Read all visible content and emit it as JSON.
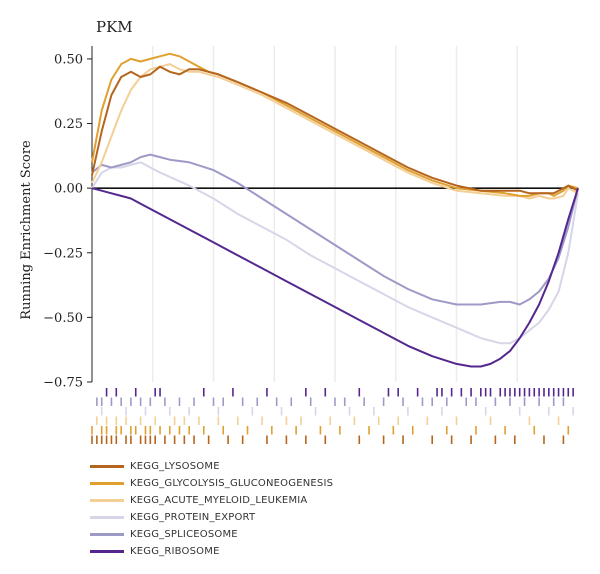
{
  "chart_data": {
    "type": "line",
    "title": "PKM",
    "xlabel": "",
    "ylabel": "Running Enrichment Score",
    "ylim": [
      -0.75,
      0.55
    ],
    "yticks": [
      0.5,
      0.25,
      0.0,
      -0.25,
      -0.5,
      -0.75
    ],
    "ytick_labels": [
      "0.50",
      "0.25",
      "0.00",
      "−0.25",
      "−0.50",
      "−0.75"
    ],
    "x_range": [
      0,
      1
    ],
    "grid": "vertical",
    "legend_position": "bottom",
    "series": [
      {
        "name": "KEGG_LYSOSOME",
        "color": "#b5651d",
        "x": [
          0,
          0.02,
          0.04,
          0.06,
          0.08,
          0.1,
          0.12,
          0.14,
          0.16,
          0.18,
          0.2,
          0.22,
          0.24,
          0.26,
          0.3,
          0.35,
          0.4,
          0.45,
          0.5,
          0.55,
          0.6,
          0.65,
          0.7,
          0.75,
          0.8,
          0.85,
          0.88,
          0.9,
          0.92,
          0.94,
          0.95,
          0.97,
          0.98,
          1.0
        ],
        "y": [
          0.05,
          0.22,
          0.36,
          0.43,
          0.45,
          0.43,
          0.44,
          0.47,
          0.45,
          0.44,
          0.46,
          0.46,
          0.45,
          0.44,
          0.41,
          0.37,
          0.33,
          0.28,
          0.23,
          0.18,
          0.13,
          0.08,
          0.04,
          0.01,
          -0.01,
          -0.01,
          -0.01,
          -0.02,
          -0.02,
          -0.02,
          -0.02,
          0.0,
          0.01,
          -0.01
        ]
      },
      {
        "name": "KEGG_GLYCOLYSIS_GLUCONEOGENESIS",
        "color": "#e0a030",
        "x": [
          0,
          0.02,
          0.04,
          0.06,
          0.08,
          0.1,
          0.12,
          0.14,
          0.16,
          0.18,
          0.2,
          0.22,
          0.24,
          0.26,
          0.3,
          0.35,
          0.4,
          0.45,
          0.5,
          0.55,
          0.6,
          0.65,
          0.7,
          0.75,
          0.8,
          0.85,
          0.88,
          0.9,
          0.92,
          0.94,
          0.95,
          0.97,
          0.98,
          1.0
        ],
        "y": [
          0.1,
          0.3,
          0.42,
          0.48,
          0.5,
          0.49,
          0.5,
          0.51,
          0.52,
          0.51,
          0.49,
          0.47,
          0.45,
          0.44,
          0.41,
          0.37,
          0.32,
          0.27,
          0.22,
          0.17,
          0.12,
          0.07,
          0.03,
          0.0,
          -0.01,
          -0.02,
          -0.03,
          -0.03,
          -0.02,
          -0.02,
          -0.03,
          -0.01,
          0.01,
          0.0
        ]
      },
      {
        "name": "KEGG_ACUTE_MYELOID_LEUKEMIA",
        "color": "#f3cf96",
        "x": [
          0,
          0.02,
          0.04,
          0.06,
          0.08,
          0.1,
          0.12,
          0.14,
          0.16,
          0.18,
          0.2,
          0.22,
          0.24,
          0.26,
          0.3,
          0.35,
          0.4,
          0.45,
          0.5,
          0.55,
          0.6,
          0.65,
          0.7,
          0.75,
          0.8,
          0.85,
          0.88,
          0.9,
          0.92,
          0.94,
          0.95,
          0.97,
          0.98,
          1.0
        ],
        "y": [
          0.02,
          0.1,
          0.2,
          0.3,
          0.38,
          0.43,
          0.46,
          0.47,
          0.48,
          0.46,
          0.45,
          0.45,
          0.44,
          0.43,
          0.4,
          0.36,
          0.31,
          0.26,
          0.21,
          0.16,
          0.11,
          0.06,
          0.02,
          -0.01,
          -0.02,
          -0.03,
          -0.03,
          -0.04,
          -0.03,
          -0.04,
          -0.04,
          -0.03,
          0.0,
          -0.02
        ]
      },
      {
        "name": "KEGG_PROTEIN_EXPORT",
        "color": "#d6d6e8",
        "x": [
          0,
          0.02,
          0.04,
          0.06,
          0.08,
          0.1,
          0.14,
          0.2,
          0.25,
          0.3,
          0.35,
          0.4,
          0.45,
          0.5,
          0.55,
          0.6,
          0.65,
          0.7,
          0.75,
          0.8,
          0.84,
          0.86,
          0.88,
          0.9,
          0.92,
          0.94,
          0.96,
          0.98,
          1.0
        ],
        "y": [
          0.0,
          0.06,
          0.08,
          0.08,
          0.09,
          0.1,
          0.06,
          0.01,
          -0.04,
          -0.1,
          -0.15,
          -0.2,
          -0.26,
          -0.31,
          -0.36,
          -0.41,
          -0.46,
          -0.5,
          -0.54,
          -0.58,
          -0.6,
          -0.6,
          -0.58,
          -0.55,
          -0.52,
          -0.47,
          -0.4,
          -0.25,
          -0.02
        ]
      },
      {
        "name": "KEGG_SPLICEOSOME",
        "color": "#9e9ac8",
        "x": [
          0,
          0.02,
          0.04,
          0.06,
          0.08,
          0.1,
          0.12,
          0.14,
          0.16,
          0.2,
          0.25,
          0.3,
          0.35,
          0.4,
          0.45,
          0.5,
          0.55,
          0.6,
          0.65,
          0.7,
          0.75,
          0.8,
          0.84,
          0.86,
          0.88,
          0.9,
          0.92,
          0.94,
          0.96,
          0.98,
          1.0
        ],
        "y": [
          0.06,
          0.09,
          0.08,
          0.09,
          0.1,
          0.12,
          0.13,
          0.12,
          0.11,
          0.1,
          0.07,
          0.02,
          -0.04,
          -0.1,
          -0.16,
          -0.22,
          -0.28,
          -0.34,
          -0.39,
          -0.43,
          -0.45,
          -0.45,
          -0.44,
          -0.44,
          -0.45,
          -0.43,
          -0.4,
          -0.35,
          -0.27,
          -0.15,
          0.0
        ]
      },
      {
        "name": "KEGG_RIBOSOME",
        "color": "#54278f",
        "x": [
          0,
          0.02,
          0.04,
          0.06,
          0.08,
          0.1,
          0.15,
          0.2,
          0.25,
          0.3,
          0.35,
          0.4,
          0.45,
          0.5,
          0.55,
          0.6,
          0.65,
          0.7,
          0.75,
          0.78,
          0.8,
          0.82,
          0.84,
          0.86,
          0.88,
          0.9,
          0.92,
          0.94,
          0.96,
          0.98,
          1.0
        ],
        "y": [
          0.0,
          -0.01,
          -0.02,
          -0.03,
          -0.04,
          -0.06,
          -0.11,
          -0.16,
          -0.21,
          -0.26,
          -0.31,
          -0.36,
          -0.41,
          -0.46,
          -0.51,
          -0.56,
          -0.61,
          -0.65,
          -0.68,
          -0.69,
          -0.69,
          -0.68,
          -0.66,
          -0.63,
          -0.58,
          -0.52,
          -0.45,
          -0.36,
          -0.25,
          -0.12,
          0.0
        ]
      }
    ],
    "rug_tracks": [
      {
        "name": "KEGG_RIBOSOME",
        "color": "#54278f",
        "x": [
          0.03,
          0.05,
          0.09,
          0.13,
          0.14,
          0.23,
          0.29,
          0.36,
          0.44,
          0.48,
          0.55,
          0.61,
          0.63,
          0.67,
          0.71,
          0.72,
          0.74,
          0.76,
          0.78,
          0.8,
          0.81,
          0.82,
          0.84,
          0.85,
          0.86,
          0.87,
          0.88,
          0.89,
          0.9,
          0.91,
          0.92,
          0.93,
          0.94,
          0.95,
          0.96,
          0.97,
          0.98,
          0.99
        ]
      },
      {
        "name": "KEGG_SPLICEOSOME",
        "color": "#9e9ac8",
        "x": [
          0.01,
          0.02,
          0.04,
          0.06,
          0.08,
          0.1,
          0.12,
          0.15,
          0.18,
          0.21,
          0.25,
          0.27,
          0.31,
          0.34,
          0.38,
          0.41,
          0.45,
          0.5,
          0.52,
          0.56,
          0.6,
          0.64,
          0.68,
          0.7,
          0.73,
          0.77,
          0.79,
          0.83,
          0.86,
          0.89,
          0.92,
          0.95,
          0.97
        ]
      },
      {
        "name": "KEGG_PROTEIN_EXPORT",
        "color": "#d6d6e8",
        "x": [
          0.02,
          0.07,
          0.11,
          0.16,
          0.2,
          0.26,
          0.33,
          0.39,
          0.46,
          0.53,
          0.58,
          0.65,
          0.72,
          0.81,
          0.88,
          0.94,
          0.99
        ]
      },
      {
        "name": "KEGG_ACUTE_MYELOID_LEUKEMIA",
        "color": "#f3cf96",
        "x": [
          0.01,
          0.03,
          0.05,
          0.07,
          0.1,
          0.13,
          0.17,
          0.19,
          0.22,
          0.26,
          0.3,
          0.35,
          0.4,
          0.43,
          0.49,
          0.54,
          0.59,
          0.63,
          0.69,
          0.75,
          0.82,
          0.9,
          0.96
        ]
      },
      {
        "name": "KEGG_GLYCOLYSIS_GLUCONEOGENESIS",
        "color": "#e0a030",
        "x": [
          0.0,
          0.02,
          0.03,
          0.05,
          0.06,
          0.08,
          0.09,
          0.11,
          0.12,
          0.14,
          0.16,
          0.18,
          0.2,
          0.23,
          0.27,
          0.32,
          0.37,
          0.42,
          0.47,
          0.51,
          0.57,
          0.62,
          0.66,
          0.73,
          0.79,
          0.85,
          0.91,
          0.98
        ]
      },
      {
        "name": "KEGG_LYSOSOME",
        "color": "#b5651d",
        "x": [
          0.0,
          0.01,
          0.02,
          0.03,
          0.04,
          0.05,
          0.07,
          0.08,
          0.1,
          0.11,
          0.12,
          0.13,
          0.15,
          0.17,
          0.19,
          0.21,
          0.24,
          0.28,
          0.31,
          0.36,
          0.4,
          0.44,
          0.48,
          0.55,
          0.6,
          0.64,
          0.7,
          0.74,
          0.78,
          0.83,
          0.87,
          0.93,
          0.97
        ]
      }
    ]
  }
}
